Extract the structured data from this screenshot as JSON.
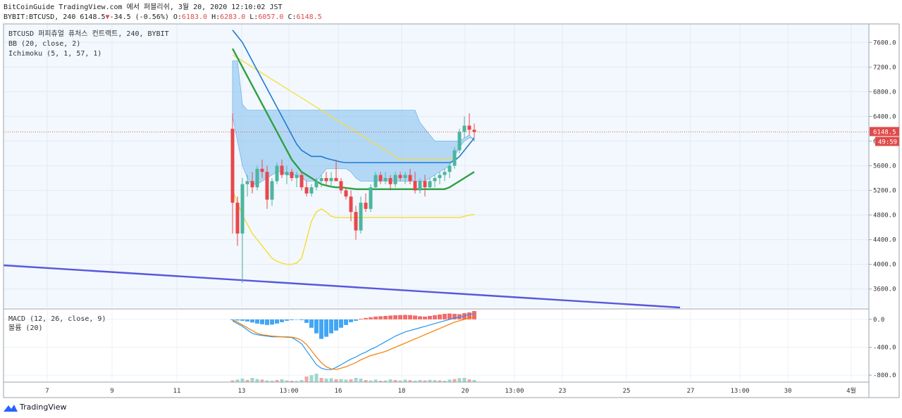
{
  "header": {
    "line1": "BitCoinGuide TradingView.com 에서 퍼블리쉬, 3월 20, 2020 12:10:02 JST",
    "symbol": "BYBIT:BTCUSD, 240",
    "last": "6148.5",
    "change_arrow": "▼",
    "change": "-34.5 (-0.56%)",
    "o_label": "O:",
    "o": "6183.0",
    "h_label": "H:",
    "h": "6283.0",
    "l_label": "L:",
    "l": "6057.0",
    "c_label": "C:",
    "c": "6148.5"
  },
  "legend": {
    "title": "BTCUSD 퍼피츄얼 퓨처스 컨트랙트, 240, BYBIT",
    "bb": "BB (20, close, 2)",
    "ichimoku": "Ichimoku (5, 1, 57, 1)",
    "macd": "MACD (12, 26, close, 9)",
    "volume": "볼륨 (20)"
  },
  "footer": {
    "brand": "TradingView"
  },
  "colors": {
    "up": "#4cb5a0",
    "down": "#e8474c",
    "cloud": "#7fbdf0",
    "bb_band": "#f7dd3c",
    "bb_mid": "#1f7bd2",
    "kijun": "#2ea043",
    "trend": "#5757e0",
    "macd": "#2196f3",
    "signal": "#f57c00"
  },
  "chart_data": [
    {
      "type": "candlestick",
      "title": "BTCUSD 퍼피츄얼 퓨처스 컨트랙트, 240, BYBIT",
      "ylim": [
        3300,
        7900
      ],
      "yticks": [
        "7600.0",
        "7200.0",
        "6800.0",
        "6400.0",
        "6000.0",
        "5600.0",
        "5200.0",
        "4800.0",
        "4400.0",
        "4000.0",
        "3600.0"
      ],
      "xticks": [
        "7",
        "9",
        "11",
        "13",
        "13:00",
        "16",
        "18",
        "20",
        "13:00",
        "23",
        "25",
        "27",
        "13:00",
        "30",
        "4월"
      ],
      "last_price_label": "6148.5",
      "countdown_label": "49:59",
      "last_price": 6148.5,
      "candles_ohlc": [
        [
          6200,
          6450,
          4500,
          5000
        ],
        [
          5000,
          5100,
          4300,
          4500
        ],
        [
          4500,
          5400,
          3700,
          5300
        ],
        [
          5300,
          5450,
          5100,
          5350
        ],
        [
          5350,
          5500,
          5150,
          5250
        ],
        [
          5250,
          5600,
          5200,
          5550
        ],
        [
          5550,
          5700,
          5400,
          5500
        ],
        [
          5500,
          5600,
          4900,
          5050
        ],
        [
          5050,
          5400,
          4950,
          5350
        ],
        [
          5350,
          5650,
          5300,
          5600
        ],
        [
          5600,
          5700,
          5400,
          5450
        ],
        [
          5450,
          5600,
          5300,
          5500
        ],
        [
          5500,
          5550,
          5350,
          5400
        ],
        [
          5400,
          5500,
          5250,
          5450
        ],
        [
          5450,
          5500,
          5200,
          5250
        ],
        [
          5250,
          5350,
          5100,
          5150
        ],
        [
          5150,
          5300,
          5100,
          5250
        ],
        [
          5250,
          5400,
          5200,
          5350
        ],
        [
          5350,
          5450,
          5250,
          5400
        ],
        [
          5400,
          5500,
          5300,
          5350
        ],
        [
          5350,
          5500,
          5250,
          5400
        ],
        [
          5400,
          5700,
          5350,
          5350
        ],
        [
          5350,
          5400,
          5150,
          5200
        ],
        [
          5200,
          5250,
          5050,
          5100
        ],
        [
          5100,
          5200,
          4700,
          4850
        ],
        [
          4850,
          4950,
          4400,
          4550
        ],
        [
          4550,
          5100,
          4500,
          5000
        ],
        [
          5000,
          5150,
          4850,
          4900
        ],
        [
          4900,
          5300,
          4850,
          5250
        ],
        [
          5250,
          5500,
          5200,
          5450
        ],
        [
          5450,
          5500,
          5300,
          5350
        ],
        [
          5350,
          5500,
          5300,
          5400
        ],
        [
          5400,
          5450,
          5200,
          5300
        ],
        [
          5300,
          5500,
          5250,
          5450
        ],
        [
          5450,
          5500,
          5350,
          5400
        ],
        [
          5400,
          5500,
          5300,
          5450
        ],
        [
          5450,
          5550,
          5300,
          5350
        ],
        [
          5350,
          5500,
          5150,
          5200
        ],
        [
          5200,
          5400,
          5150,
          5350
        ],
        [
          5350,
          5450,
          5100,
          5250
        ],
        [
          5250,
          5400,
          5200,
          5350
        ],
        [
          5350,
          5450,
          5250,
          5400
        ],
        [
          5400,
          5500,
          5300,
          5450
        ],
        [
          5450,
          5550,
          5350,
          5500
        ],
        [
          5500,
          5650,
          5400,
          5600
        ],
        [
          5600,
          5900,
          5550,
          5850
        ],
        [
          5850,
          6200,
          5800,
          6150
        ],
        [
          6150,
          6400,
          6050,
          6250
        ],
        [
          6250,
          6450,
          6100,
          6183
        ],
        [
          6183,
          6283,
          6057,
          6148.5
        ]
      ],
      "bb_upper": [
        7400,
        7350,
        7300,
        7250,
        7200,
        7150,
        7100,
        7050,
        7000,
        6950,
        6900,
        6850,
        6800,
        6750,
        6700,
        6650,
        6600,
        6550,
        6500,
        6450,
        6400,
        6350,
        6300,
        6250,
        6200,
        6150,
        6100,
        6050,
        6000,
        5950,
        5900,
        5850,
        5800,
        5750,
        5700,
        5700,
        5700,
        5700,
        5700,
        5700,
        5700,
        5700,
        5700,
        5700,
        5700,
        5700,
        5750,
        5850,
        5950,
        6050
      ],
      "bb_lower": [
        5200,
        5000,
        4800,
        4650,
        4500,
        4400,
        4300,
        4200,
        4100,
        4050,
        4020,
        4000,
        4000,
        4020,
        4100,
        4400,
        4700,
        4850,
        4900,
        4850,
        4780,
        4760,
        4760,
        4760,
        4760,
        4760,
        4760,
        4760,
        4760,
        4760,
        4760,
        4760,
        4760,
        4760,
        4760,
        4760,
        4760,
        4760,
        4760,
        4760,
        4760,
        4760,
        4760,
        4760,
        4760,
        4760,
        4760,
        4780,
        4800,
        4810
      ],
      "bb_basis": [
        7800,
        7700,
        7600,
        7450,
        7300,
        7150,
        7000,
        6850,
        6700,
        6550,
        6400,
        6250,
        6100,
        5950,
        5850,
        5800,
        5750,
        5750,
        5750,
        5720,
        5700,
        5680,
        5660,
        5650,
        5650,
        5650,
        5650,
        5650,
        5650,
        5650,
        5650,
        5650,
        5650,
        5650,
        5650,
        5650,
        5650,
        5650,
        5650,
        5650,
        5650,
        5650,
        5650,
        5650,
        5650,
        5680,
        5750,
        5850,
        5950,
        6050
      ],
      "kijun": [
        7500,
        7350,
        7200,
        7050,
        6900,
        6750,
        6600,
        6450,
        6300,
        6150,
        6000,
        5850,
        5700,
        5600,
        5500,
        5450,
        5400,
        5350,
        5300,
        5280,
        5260,
        5250,
        5250,
        5240,
        5230,
        5220,
        5220,
        5220,
        5220,
        5220,
        5220,
        5220,
        5220,
        5220,
        5220,
        5220,
        5220,
        5220,
        5220,
        5220,
        5220,
        5220,
        5220,
        5220,
        5250,
        5300,
        5350,
        5400,
        5450,
        5500
      ],
      "cloud_top": [
        7300,
        7300,
        6600,
        6500,
        6500,
        6500,
        6500,
        6500,
        6500,
        6500,
        6500,
        6500,
        6500,
        6500,
        6500,
        6500,
        6500,
        6500,
        6500,
        6500,
        6500,
        6500,
        6500,
        6500,
        6500,
        6500,
        6500,
        6500,
        6500,
        6500,
        6500,
        6500,
        6500,
        6500,
        6500,
        6500,
        6500,
        6500,
        6300,
        6200,
        6100,
        6000,
        6000,
        6000,
        6000,
        6000,
        6000,
        6050,
        6100,
        6000
      ],
      "cloud_bottom": [
        6400,
        6000,
        5600,
        5400,
        5300,
        5300,
        5350,
        5400,
        5450,
        5500,
        5500,
        5450,
        5450,
        5450,
        5400,
        5350,
        5350,
        5350,
        5450,
        5550,
        5550,
        5550,
        5550,
        5550,
        5500,
        5400,
        5350,
        5350,
        5350,
        5350,
        5350,
        5350,
        5350,
        5350,
        5350,
        5350,
        5350,
        5350,
        5350,
        5350,
        5400,
        5450,
        5500,
        5550,
        5600,
        5750,
        5900,
        6000,
        6050,
        6050
      ],
      "trendline": [
        [
          0,
          3950
        ],
        [
          1,
          3910
        ],
        [
          2,
          3880
        ],
        [
          3,
          3850
        ],
        [
          4,
          3820
        ],
        [
          5,
          3790
        ],
        [
          6,
          3760
        ],
        [
          7,
          3740
        ],
        [
          8,
          3720
        ],
        [
          9,
          3700
        ],
        [
          10,
          3680
        ],
        [
          11,
          3660
        ],
        [
          12,
          3640
        ],
        [
          13,
          3620
        ],
        [
          14,
          3600
        ],
        [
          15,
          3580
        ],
        [
          16,
          3560
        ],
        [
          17,
          3540
        ],
        [
          18,
          3520
        ],
        [
          19,
          3500
        ],
        [
          20,
          3480
        ],
        [
          21,
          3460
        ],
        [
          22,
          3440
        ],
        [
          23,
          3420
        ],
        [
          24,
          3400
        ],
        [
          25,
          3380
        ],
        [
          26,
          3360
        ],
        [
          27,
          3340
        ]
      ]
    },
    {
      "type": "bar",
      "title": "MACD (12, 26, close, 9)",
      "ylim": [
        -900,
        130
      ],
      "yticks": [
        "0.0",
        "-400.0",
        "-800.0"
      ],
      "histogram": [
        -10,
        -15,
        -20,
        -30,
        -45,
        -60,
        -70,
        -80,
        -75,
        -60,
        -40,
        -20,
        -10,
        -5,
        -10,
        -50,
        -120,
        -200,
        -280,
        -250,
        -200,
        -160,
        -120,
        -80,
        -40,
        -20,
        10,
        20,
        30,
        40,
        45,
        50,
        55,
        60,
        62,
        65,
        62,
        55,
        45,
        40,
        50,
        60,
        70,
        80,
        85,
        80,
        75,
        90,
        100,
        120
      ],
      "macd": [
        -20,
        -60,
        -100,
        -150,
        -200,
        -220,
        -230,
        -240,
        -250,
        -250,
        -250,
        -255,
        -260,
        -300,
        -350,
        -450,
        -550,
        -650,
        -700,
        -720,
        -720,
        -690,
        -650,
        -610,
        -570,
        -540,
        -500,
        -470,
        -430,
        -400,
        -360,
        -320,
        -280,
        -240,
        -210,
        -180,
        -160,
        -140,
        -120,
        -100,
        -80,
        -60,
        -40,
        -20,
        0,
        20,
        30,
        50,
        70,
        80
      ],
      "signal": [
        -10,
        -40,
        -80,
        -120,
        -160,
        -200,
        -220,
        -230,
        -240,
        -245,
        -250,
        -250,
        -255,
        -270,
        -300,
        -360,
        -450,
        -540,
        -620,
        -680,
        -710,
        -720,
        -700,
        -680,
        -650,
        -620,
        -580,
        -550,
        -520,
        -500,
        -480,
        -460,
        -430,
        -400,
        -370,
        -340,
        -310,
        -280,
        -250,
        -220,
        -190,
        -160,
        -130,
        -100,
        -70,
        -40,
        -20,
        0,
        20,
        40
      ],
      "volume": [
        12,
        18,
        25,
        15,
        30,
        22,
        18,
        12,
        10,
        15,
        20,
        12,
        10,
        8,
        15,
        40,
        50,
        60,
        30,
        25,
        28,
        20,
        22,
        18,
        20,
        30,
        25,
        15,
        12,
        18,
        10,
        12,
        20,
        15,
        12,
        18,
        14,
        10,
        15,
        12,
        16,
        14,
        12,
        10,
        18,
        22,
        28,
        30,
        20,
        15
      ]
    }
  ]
}
